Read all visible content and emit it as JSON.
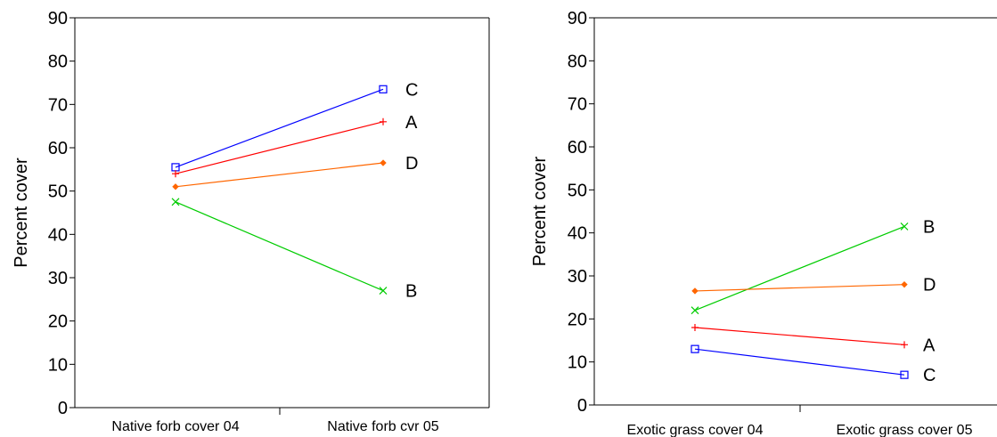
{
  "chart_data": [
    {
      "type": "line",
      "ylabel": "Percent cover",
      "ylim": [
        0,
        90
      ],
      "yticks": [
        "0",
        "10",
        "20",
        "30",
        "40",
        "50",
        "60",
        "70",
        "80",
        "90"
      ],
      "categories": [
        "Native forb cover 04",
        "Native forb cvr 05"
      ],
      "grid": false,
      "series": [
        {
          "name": "C",
          "marker": "square",
          "color": "#0000ff",
          "values": [
            55.5,
            73.5
          ]
        },
        {
          "name": "A",
          "marker": "plus",
          "color": "#ff0000",
          "values": [
            54,
            66
          ]
        },
        {
          "name": "D",
          "marker": "diamond",
          "color": "#ff6600",
          "values": [
            51,
            56.5
          ]
        },
        {
          "name": "B",
          "marker": "x",
          "color": "#00cc00",
          "values": [
            47.5,
            27
          ]
        }
      ]
    },
    {
      "type": "line",
      "ylabel": "Percent cover",
      "ylim": [
        0,
        90
      ],
      "yticks": [
        "0",
        "10",
        "20",
        "30",
        "40",
        "50",
        "60",
        "70",
        "80",
        "90"
      ],
      "categories": [
        "Exotic grass cover 04",
        "Exotic grass cover 05"
      ],
      "grid": false,
      "series": [
        {
          "name": "B",
          "marker": "x",
          "color": "#00cc00",
          "values": [
            22,
            41.5
          ]
        },
        {
          "name": "D",
          "marker": "diamond",
          "color": "#ff6600",
          "values": [
            26.5,
            28
          ]
        },
        {
          "name": "A",
          "marker": "plus",
          "color": "#ff0000",
          "values": [
            18,
            14
          ]
        },
        {
          "name": "C",
          "marker": "square",
          "color": "#0000ff",
          "values": [
            13,
            7
          ]
        }
      ]
    }
  ]
}
